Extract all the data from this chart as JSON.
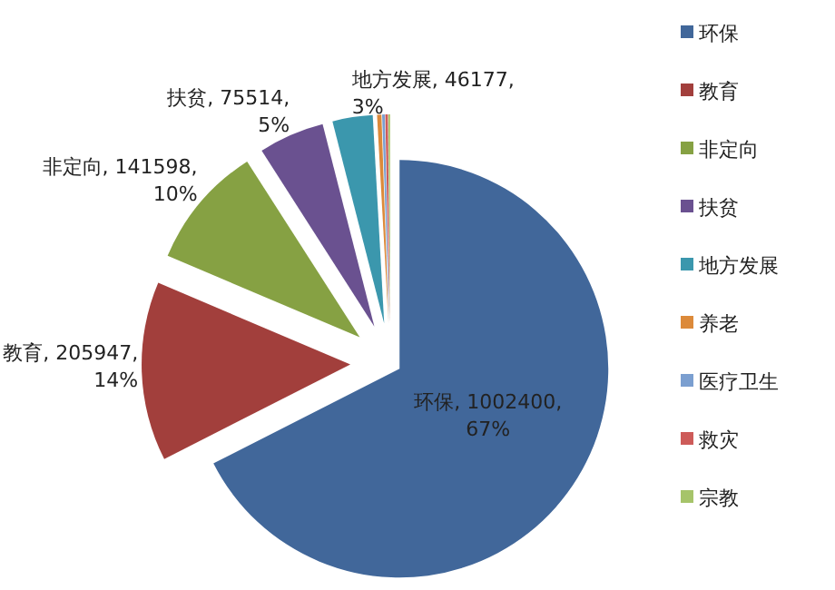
{
  "chart_data": {
    "type": "pie",
    "categories": [
      "环保",
      "教育",
      "非定向",
      "扶贫",
      "地方发展",
      "养老",
      "医疗卫生",
      "救灾",
      "宗教"
    ],
    "values": [
      1002400,
      205947,
      141598,
      75514,
      46177,
      5000,
      3000,
      3000,
      2000
    ],
    "colors": [
      "#41679a",
      "#a23f3c",
      "#86a143",
      "#6a5190",
      "#3b97ad",
      "#dc8a3a",
      "#7b9fd0",
      "#cd5b59",
      "#a6c46a"
    ],
    "value_labels": [
      "环保, 1002400, 67%",
      "教育, 205947, 14%",
      "非定向, 141598, 10%",
      "扶贫, 75514, 5%",
      "地方发展, 46177, 3%",
      null,
      null,
      null,
      null
    ],
    "legend": "right"
  }
}
